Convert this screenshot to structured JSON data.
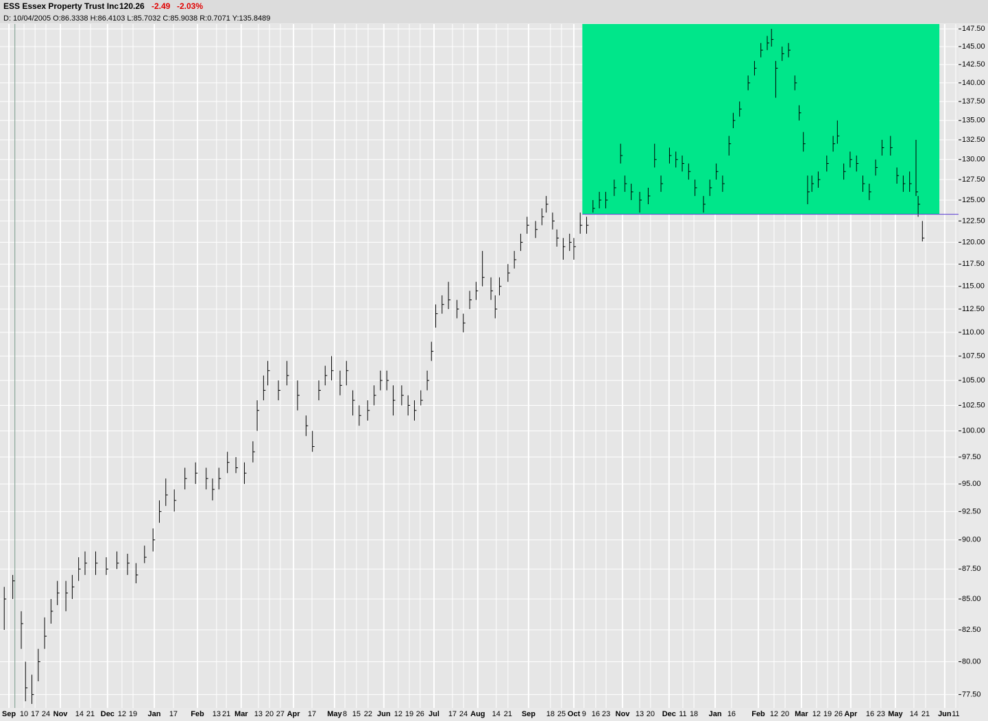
{
  "header": {
    "symbol": "ESS Essex Property Trust Inc",
    "last": "120.26",
    "change": "-2.49",
    "change_pct": "-2.03%",
    "info": "D: 10/04/2005 O:86.3338 H:86.4103 L:85.7032 C:85.9038 R:0.7071 Y:135.8489"
  },
  "chart_data": {
    "type": "ohlc",
    "log_scale": true,
    "grid": true,
    "color": "#000000",
    "xlim": [
      0,
      451
    ],
    "ylim": [
      76.5,
      148.2
    ],
    "x": [
      2,
      6,
      10,
      12,
      15,
      18,
      21,
      24,
      27,
      31,
      34,
      37,
      40,
      45,
      50,
      55,
      60,
      64,
      68,
      72,
      75,
      78,
      82,
      87,
      92,
      97,
      100,
      103,
      107,
      111,
      115,
      119,
      121,
      124,
      126,
      131,
      135,
      140,
      144,
      147,
      150,
      153,
      156,
      160,
      163,
      166,
      169,
      173,
      176,
      179,
      182,
      185,
      189,
      192,
      195,
      198,
      201,
      203,
      205,
      208,
      211,
      215,
      218,
      221,
      224,
      227,
      231,
      233,
      235,
      239,
      242,
      245,
      248,
      252,
      255,
      257,
      260,
      262,
      265,
      268,
      270,
      273,
      276,
      279,
      282,
      285,
      289,
      292,
      294,
      297,
      301,
      305,
      308,
      311,
      315,
      318,
      321,
      324,
      327,
      331,
      334,
      337,
      340,
      343,
      345,
      348,
      352,
      355,
      358,
      361,
      363,
      365,
      368,
      371,
      374,
      376,
      378,
      380,
      382,
      385,
      389,
      392,
      394,
      397,
      400,
      403,
      406,
      409,
      412,
      415,
      419,
      422,
      425,
      428,
      431,
      432,
      434
    ],
    "close": [
      85,
      86.5,
      83,
      78,
      77.5,
      80,
      82,
      84,
      85.5,
      85.5,
      86,
      87.5,
      88,
      88,
      87.5,
      88,
      88,
      87,
      88.5,
      90,
      92.5,
      94,
      93.5,
      95.5,
      96,
      95.5,
      94.5,
      95.5,
      97,
      96.5,
      96,
      98,
      102,
      104,
      106,
      104,
      105.5,
      103.5,
      100.5,
      98.5,
      104,
      105.5,
      106,
      104.5,
      106,
      103,
      101.5,
      102,
      103.5,
      105,
      105,
      103,
      103.5,
      102.5,
      102,
      103,
      105,
      108,
      112,
      113,
      113.5,
      112.5,
      111,
      113.5,
      114.5,
      116,
      114.5,
      112.5,
      115,
      116.5,
      118,
      120,
      122,
      121.5,
      123,
      124.5,
      122.5,
      120.5,
      119.5,
      120,
      119.5,
      122,
      122,
      124,
      125,
      125,
      126.5,
      130.5,
      127,
      126,
      125,
      125.5,
      130,
      127,
      130.5,
      130,
      129.5,
      128.5,
      126.5,
      124.5,
      126.5,
      128.5,
      127,
      132,
      135,
      136.5,
      140,
      142,
      144.5,
      145.5,
      146,
      142,
      144,
      144.5,
      140,
      136,
      132,
      126,
      127,
      127.5,
      129.5,
      132,
      133,
      128.5,
      130,
      129.5,
      127,
      126,
      129,
      131.5,
      131.5,
      128,
      127,
      127,
      126,
      124.5,
      120.5
    ],
    "high": [
      86,
      87,
      84,
      80,
      79,
      81,
      83.5,
      85,
      86.5,
      86.5,
      87,
      88.5,
      89,
      89,
      88.5,
      89,
      88.8,
      88,
      89.5,
      91,
      93.5,
      95.5,
      94.5,
      96.5,
      97,
      96.5,
      95.5,
      96.5,
      98,
      97.5,
      97,
      99,
      103,
      105.5,
      107,
      105,
      107,
      105,
      101.5,
      100,
      105,
      106.5,
      107.5,
      106,
      107,
      104,
      102.5,
      103,
      104.5,
      106,
      106,
      104.5,
      104.5,
      103.5,
      103,
      104,
      106,
      109,
      113,
      114,
      115.5,
      113.5,
      112,
      114.5,
      115.5,
      119,
      116,
      114,
      116,
      117.5,
      119,
      121,
      123,
      122.5,
      124,
      125.5,
      123.5,
      121.5,
      120.5,
      121,
      120.5,
      123.5,
      123,
      125,
      126,
      126,
      127.5,
      132,
      128,
      127,
      126,
      126.5,
      132,
      128,
      131.5,
      131,
      130.5,
      129.5,
      127.5,
      125.5,
      127.5,
      129.5,
      128,
      133,
      136,
      137.5,
      141,
      143,
      145.5,
      146.5,
      147.5,
      143,
      145,
      145.5,
      141,
      137,
      133.5,
      128,
      128,
      128.5,
      130.5,
      133,
      135,
      129.5,
      131,
      130.5,
      128,
      127,
      130,
      132.5,
      133,
      129,
      128,
      128.5,
      132.5,
      125.5,
      122.5
    ],
    "low": [
      82.5,
      85,
      81,
      77,
      76.8,
      78.5,
      81,
      83,
      84.5,
      84,
      85,
      86.5,
      87,
      87,
      87,
      87.5,
      87,
      86.3,
      88,
      89,
      91.5,
      93,
      92.5,
      94.5,
      95,
      94.5,
      93.5,
      94.5,
      96,
      96,
      95,
      97,
      100,
      103,
      104.5,
      103,
      104.5,
      102,
      99.5,
      98,
      103,
      104.5,
      105,
      103.5,
      104.5,
      101.5,
      100.5,
      101,
      102.5,
      104,
      104,
      101.5,
      102.5,
      101.5,
      101,
      102.5,
      104,
      107,
      110.5,
      112,
      112.5,
      111.5,
      110,
      112.5,
      113.5,
      115,
      113.5,
      111.5,
      114,
      115.5,
      117,
      119,
      121,
      120.5,
      122,
      123.5,
      121.5,
      119.5,
      118,
      119,
      118,
      121,
      121,
      123.5,
      124,
      124,
      125.5,
      129.5,
      126,
      125,
      123.5,
      124.5,
      129,
      126,
      129.5,
      129,
      128.5,
      127.5,
      125.5,
      123.5,
      125.5,
      127.5,
      126,
      130.5,
      134,
      135.5,
      139,
      141,
      143.5,
      144.5,
      145,
      138,
      143,
      143.5,
      139,
      135,
      131,
      124.5,
      126,
      126.5,
      128.5,
      131,
      132,
      127.5,
      129,
      128.5,
      126,
      125,
      128,
      130.5,
      130.5,
      127,
      126,
      126,
      125.5,
      123,
      120.1
    ],
    "highlight": {
      "x": [
        274,
        442
      ],
      "y": [
        123.3,
        148.2
      ],
      "color": "#00e68a"
    },
    "hline": {
      "value": 123.3,
      "x": [
        274,
        451
      ],
      "color": "#5b3fd1"
    },
    "vline": {
      "value": 7,
      "color": "#7a9a8a"
    },
    "yticks": [
      {
        "value": 147.5,
        "label": "147.50"
      },
      {
        "value": 145,
        "label": "145.00"
      },
      {
        "value": 142.5,
        "label": "142.50"
      },
      {
        "value": 140,
        "label": "140.00"
      },
      {
        "value": 137.5,
        "label": "137.50"
      },
      {
        "value": 135,
        "label": "135.00"
      },
      {
        "value": 132.5,
        "label": "132.50"
      },
      {
        "value": 130,
        "label": "130.00"
      },
      {
        "value": 127.5,
        "label": "127.50"
      },
      {
        "value": 125,
        "label": "125.00"
      },
      {
        "value": 122.5,
        "label": "122.50"
      },
      {
        "value": 120,
        "label": "120.00"
      },
      {
        "value": 117.5,
        "label": "117.50"
      },
      {
        "value": 115,
        "label": "115.00"
      },
      {
        "value": 112.5,
        "label": "112.50"
      },
      {
        "value": 110,
        "label": "110.00"
      },
      {
        "value": 107.5,
        "label": "107.50"
      },
      {
        "value": 105,
        "label": "105.00"
      },
      {
        "value": 102.5,
        "label": "102.50"
      },
      {
        "value": 100,
        "label": "100.00"
      },
      {
        "value": 97.5,
        "label": "97.50"
      },
      {
        "value": 95,
        "label": "95.00"
      },
      {
        "value": 92.5,
        "label": "92.50"
      },
      {
        "value": 90,
        "label": "90.00"
      },
      {
        "value": 87.5,
        "label": "87.50"
      },
      {
        "value": 85,
        "label": "85.00"
      },
      {
        "value": 82.5,
        "label": "82.50"
      },
      {
        "value": 80,
        "label": "80.00"
      },
      {
        "value": 77.5,
        "label": "77.50"
      }
    ],
    "xticks": [
      {
        "value": 4.2,
        "label": "Sep"
      },
      {
        "value": 11.3,
        "label": "10"
      },
      {
        "value": 16.5,
        "label": "17"
      },
      {
        "value": 21.6,
        "label": "24"
      },
      {
        "value": 28.4,
        "label": "Nov"
      },
      {
        "value": 37.4,
        "label": "14"
      },
      {
        "value": 42.6,
        "label": "21"
      },
      {
        "value": 50.6,
        "label": "Dec"
      },
      {
        "value": 57.4,
        "label": "12"
      },
      {
        "value": 62.6,
        "label": "19"
      },
      {
        "value": 72.6,
        "label": "Jan"
      },
      {
        "value": 81.6,
        "label": "17"
      },
      {
        "value": 92.9,
        "label": "Feb"
      },
      {
        "value": 101.9,
        "label": "13"
      },
      {
        "value": 106.5,
        "label": "21"
      },
      {
        "value": 113.5,
        "label": "Mar"
      },
      {
        "value": 121.6,
        "label": "13"
      },
      {
        "value": 126.8,
        "label": "20"
      },
      {
        "value": 131.9,
        "label": "27"
      },
      {
        "value": 138.1,
        "label": "Apr"
      },
      {
        "value": 146.8,
        "label": "17"
      },
      {
        "value": 157.4,
        "label": "May"
      },
      {
        "value": 162.3,
        "label": "8"
      },
      {
        "value": 167.7,
        "label": "15"
      },
      {
        "value": 173.2,
        "label": "22"
      },
      {
        "value": 180.6,
        "label": "Jun"
      },
      {
        "value": 187.4,
        "label": "12"
      },
      {
        "value": 192.6,
        "label": "19"
      },
      {
        "value": 197.7,
        "label": "26"
      },
      {
        "value": 204.2,
        "label": "Jul"
      },
      {
        "value": 212.9,
        "label": "17"
      },
      {
        "value": 218.1,
        "label": "24"
      },
      {
        "value": 224.8,
        "label": "Aug"
      },
      {
        "value": 233.5,
        "label": "14"
      },
      {
        "value": 239,
        "label": "21"
      },
      {
        "value": 248.7,
        "label": "Sep"
      },
      {
        "value": 259,
        "label": "18"
      },
      {
        "value": 264.2,
        "label": "25"
      },
      {
        "value": 270,
        "label": "Oct"
      },
      {
        "value": 274.8,
        "label": "9"
      },
      {
        "value": 280.3,
        "label": "16"
      },
      {
        "value": 285.2,
        "label": "23"
      },
      {
        "value": 292.9,
        "label": "Nov"
      },
      {
        "value": 301,
        "label": "13"
      },
      {
        "value": 306.1,
        "label": "20"
      },
      {
        "value": 314.8,
        "label": "Dec"
      },
      {
        "value": 321.3,
        "label": "11"
      },
      {
        "value": 326.5,
        "label": "18"
      },
      {
        "value": 336.5,
        "label": "Jan"
      },
      {
        "value": 344.2,
        "label": "16"
      },
      {
        "value": 356.8,
        "label": "Feb"
      },
      {
        "value": 364.2,
        "label": "12"
      },
      {
        "value": 369.4,
        "label": "20"
      },
      {
        "value": 377.1,
        "label": "Mar"
      },
      {
        "value": 384.2,
        "label": "12"
      },
      {
        "value": 389.4,
        "label": "19"
      },
      {
        "value": 394.5,
        "label": "26"
      },
      {
        "value": 400.3,
        "label": "Apr"
      },
      {
        "value": 409.4,
        "label": "16"
      },
      {
        "value": 414.5,
        "label": "23"
      },
      {
        "value": 421.3,
        "label": "May"
      },
      {
        "value": 430,
        "label": "14"
      },
      {
        "value": 435.5,
        "label": "21"
      },
      {
        "value": 444.5,
        "label": "Jun"
      },
      {
        "value": 449.7,
        "label": "11"
      }
    ]
  }
}
